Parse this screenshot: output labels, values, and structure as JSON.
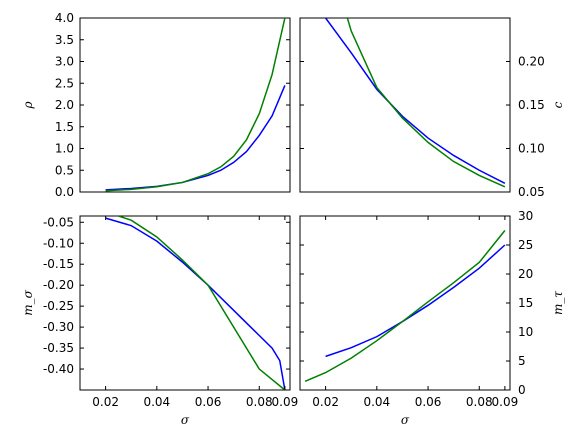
{
  "colors": {
    "series_a": "#0000ff",
    "series_b": "#008000",
    "axes": "#000000",
    "background": "#ffffff"
  },
  "chart_data": [
    {
      "type": "line",
      "id": "top-left",
      "xlabel": "",
      "ylabel": "ρ",
      "xlim": [
        0.01,
        0.092
      ],
      "ylim": [
        0.0,
        4.0
      ],
      "x_ticks": [],
      "y_ticks": [
        "0.0",
        "0.5",
        "1.0",
        "1.5",
        "2.0",
        "2.5",
        "3.0",
        "3.5",
        "4.0"
      ],
      "y_tick_values": [
        0.0,
        0.5,
        1.0,
        1.5,
        2.0,
        2.5,
        3.0,
        3.5,
        4.0
      ],
      "y_axis_side": "left",
      "series": [
        {
          "color": "#0000ff",
          "x": [
            0.02,
            0.03,
            0.04,
            0.05,
            0.06,
            0.065,
            0.07,
            0.075,
            0.08,
            0.085,
            0.09
          ],
          "y": [
            0.05,
            0.08,
            0.13,
            0.22,
            0.38,
            0.5,
            0.68,
            0.93,
            1.3,
            1.75,
            2.45
          ]
        },
        {
          "color": "#008000",
          "x": [
            0.02,
            0.03,
            0.04,
            0.05,
            0.06,
            0.065,
            0.07,
            0.075,
            0.08,
            0.085,
            0.09
          ],
          "y": [
            0.03,
            0.06,
            0.12,
            0.22,
            0.42,
            0.58,
            0.82,
            1.2,
            1.8,
            2.7,
            4.0
          ]
        }
      ]
    },
    {
      "type": "line",
      "id": "top-right",
      "xlabel": "",
      "ylabel": "c",
      "xlim": [
        0.01,
        0.092
      ],
      "ylim": [
        0.05,
        0.25
      ],
      "x_ticks": [],
      "y_ticks": [
        "0.05",
        "0.10",
        "0.15",
        "0.20"
      ],
      "y_tick_values": [
        0.05,
        0.1,
        0.15,
        0.2
      ],
      "y_axis_side": "right",
      "series": [
        {
          "color": "#0000ff",
          "x": [
            0.02,
            0.03,
            0.04,
            0.05,
            0.06,
            0.07,
            0.08,
            0.09
          ],
          "y": [
            0.25,
            0.21,
            0.168,
            0.137,
            0.112,
            0.092,
            0.075,
            0.06
          ]
        },
        {
          "color": "#008000",
          "x": [
            0.0285,
            0.03,
            0.04,
            0.05,
            0.06,
            0.07,
            0.08,
            0.09
          ],
          "y": [
            0.25,
            0.235,
            0.17,
            0.135,
            0.107,
            0.085,
            0.069,
            0.056
          ]
        }
      ]
    },
    {
      "type": "line",
      "id": "bottom-left",
      "xlabel": "σ",
      "ylabel": "m_σ",
      "xlim": [
        0.01,
        0.092
      ],
      "ylim": [
        -0.45,
        -0.035
      ],
      "x_ticks": [
        "0.02",
        "0.04",
        "0.06",
        "0.08",
        "0.09"
      ],
      "x_tick_values": [
        0.02,
        0.04,
        0.06,
        0.08,
        0.09
      ],
      "y_ticks": [
        "-0.05",
        "-0.10",
        "-0.15",
        "-0.20",
        "-0.25",
        "-0.30",
        "-0.35",
        "-0.40"
      ],
      "y_tick_values": [
        -0.05,
        -0.1,
        -0.15,
        -0.2,
        -0.25,
        -0.3,
        -0.35,
        -0.4
      ],
      "y_axis_side": "left",
      "series": [
        {
          "color": "#0000ff",
          "x": [
            0.02,
            0.03,
            0.04,
            0.05,
            0.06,
            0.07,
            0.075,
            0.08,
            0.085,
            0.088,
            0.09
          ],
          "y": [
            -0.04,
            -0.058,
            -0.095,
            -0.145,
            -0.2,
            -0.26,
            -0.29,
            -0.32,
            -0.35,
            -0.38,
            -0.45
          ]
        },
        {
          "color": "#008000",
          "x": [
            0.025,
            0.03,
            0.04,
            0.05,
            0.06,
            0.07,
            0.08,
            0.09
          ],
          "y": [
            -0.035,
            -0.045,
            -0.085,
            -0.14,
            -0.2,
            -0.3,
            -0.4,
            -0.45
          ]
        }
      ]
    },
    {
      "type": "line",
      "id": "bottom-right",
      "xlabel": "σ",
      "ylabel": "m_τ",
      "xlim": [
        0.01,
        0.092
      ],
      "ylim": [
        0,
        30
      ],
      "x_ticks": [
        "0.02",
        "0.04",
        "0.06",
        "0.08",
        "0.09"
      ],
      "x_tick_values": [
        0.02,
        0.04,
        0.06,
        0.08,
        0.09
      ],
      "y_ticks": [
        "0",
        "5",
        "10",
        "15",
        "20",
        "25",
        "30"
      ],
      "y_tick_values": [
        0,
        5,
        10,
        15,
        20,
        25,
        30
      ],
      "y_axis_side": "right",
      "series": [
        {
          "color": "#0000ff",
          "x": [
            0.02,
            0.03,
            0.04,
            0.05,
            0.06,
            0.07,
            0.08,
            0.09
          ],
          "y": [
            5.8,
            7.3,
            9.2,
            11.8,
            14.6,
            17.7,
            21.0,
            25.0
          ]
        },
        {
          "color": "#008000",
          "x": [
            0.012,
            0.02,
            0.03,
            0.04,
            0.05,
            0.06,
            0.07,
            0.08,
            0.09
          ],
          "y": [
            1.5,
            3.0,
            5.5,
            8.5,
            11.8,
            15.2,
            18.5,
            22.0,
            27.5
          ]
        }
      ]
    }
  ]
}
